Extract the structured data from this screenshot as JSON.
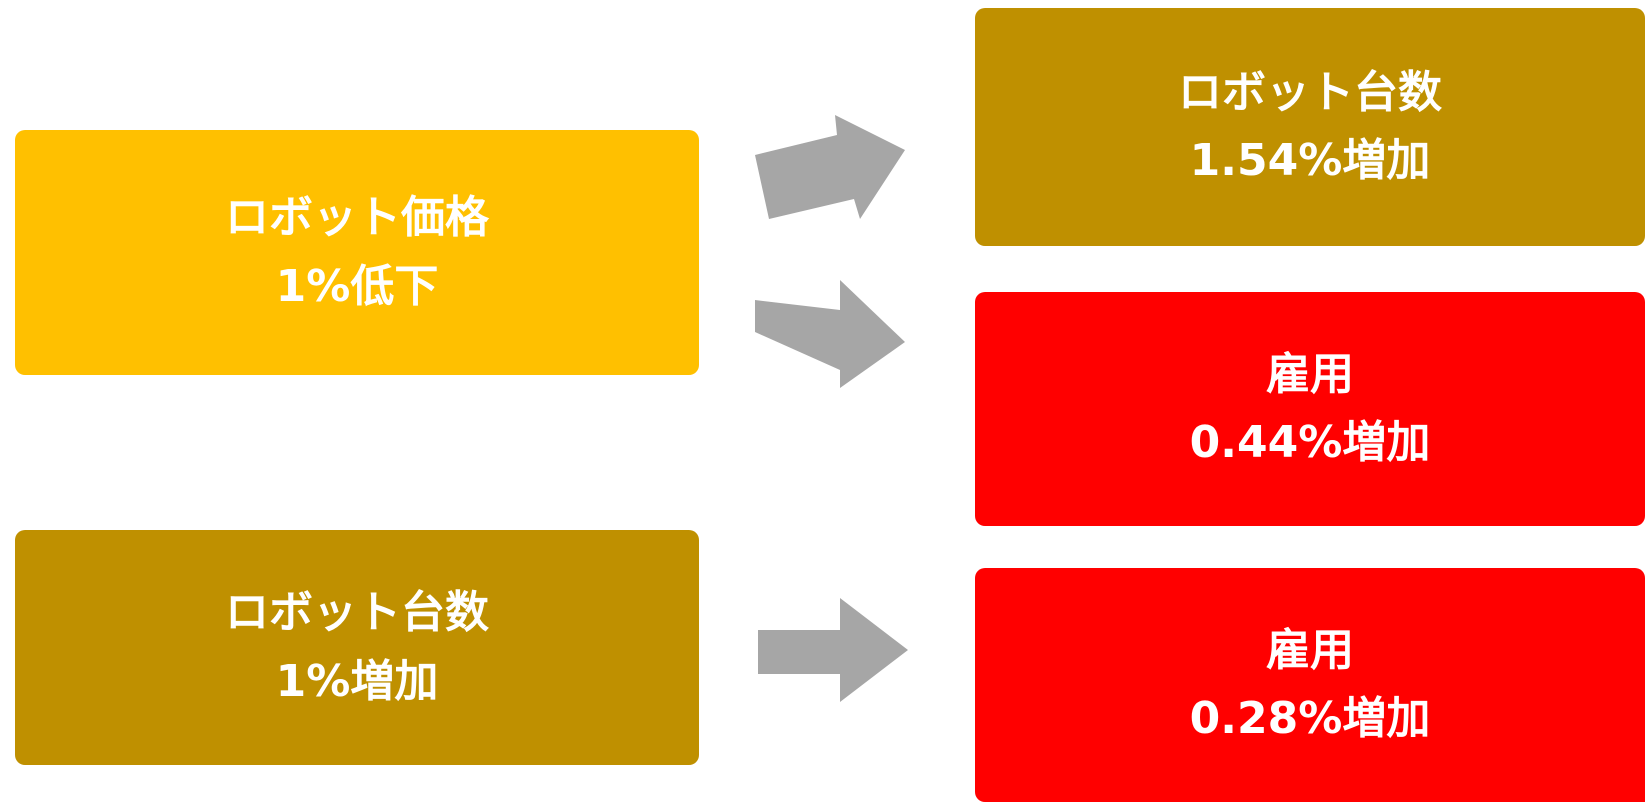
{
  "colors": {
    "price_box": "#FFC000",
    "robot_box": "#BF9000",
    "employment_box": "#FF0000",
    "arrow": "#A6A6A6"
  },
  "left": {
    "price": {
      "line1": "ロボット価格",
      "line2": "1%低下"
    },
    "robots": {
      "line1": "ロボット台数",
      "line2": "1%増加"
    }
  },
  "right": {
    "robot_count": {
      "line1": "ロボット台数",
      "line2": "1.54%増加"
    },
    "employment_a": {
      "line1": "雇用",
      "line2": "0.44%増加"
    },
    "employment_b": {
      "line1": "雇用",
      "line2": "0.28%増加"
    }
  },
  "arrows": [
    {
      "from": "price",
      "to": "robot_count",
      "icon": "arrow-right-icon"
    },
    {
      "from": "price",
      "to": "employment_a",
      "icon": "arrow-right-icon"
    },
    {
      "from": "robots",
      "to": "employment_b",
      "icon": "arrow-right-icon"
    }
  ]
}
